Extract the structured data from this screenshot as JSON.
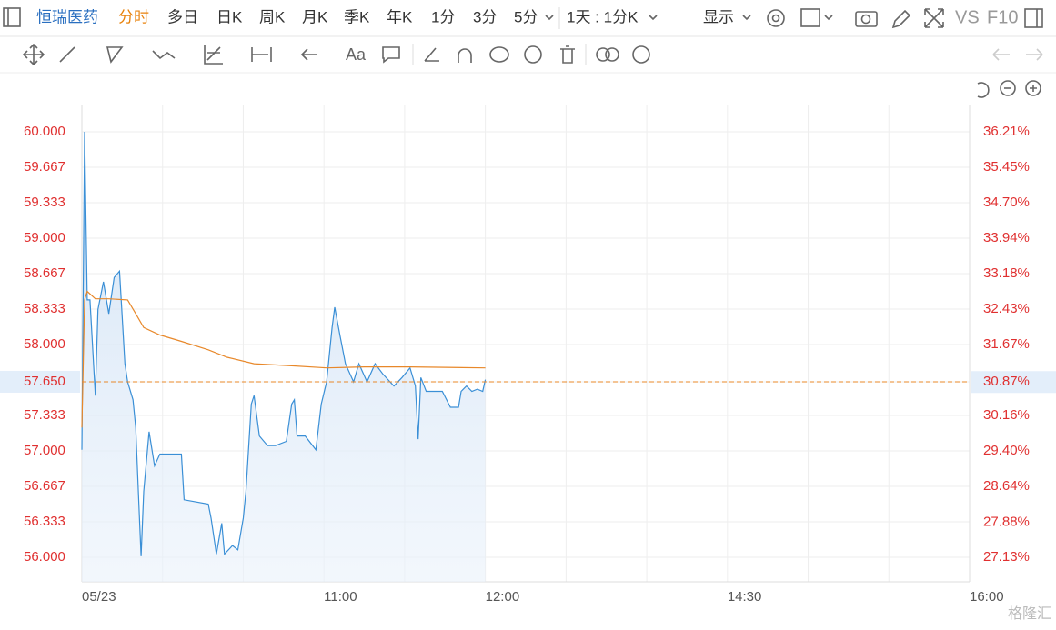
{
  "toolbar": {
    "stock": "恒瑞医药",
    "tabs": [
      "分时",
      "多日",
      "日K",
      "周K",
      "月K",
      "季K",
      "年K",
      "1分",
      "3分",
      "5分"
    ],
    "period": "1天 : 1分K",
    "display": "显示",
    "vs": "VS",
    "f10": "F10"
  },
  "watermark": "格隆汇",
  "chart_data": {
    "type": "line",
    "series": [
      {
        "color": "#3a8fd6",
        "x": [
          0,
          1,
          2,
          3,
          5,
          6,
          8,
          10,
          12,
          14,
          15,
          16,
          17,
          19,
          20,
          21,
          22,
          23,
          25,
          27,
          29,
          31,
          33,
          37,
          38,
          47,
          48,
          50,
          52,
          53,
          56,
          58,
          60,
          61,
          63,
          64,
          66,
          69,
          72,
          76,
          78,
          79,
          80,
          83,
          87,
          89,
          91,
          93,
          94,
          96,
          98,
          101,
          103,
          106,
          109,
          112,
          116,
          119,
          122,
          124,
          125,
          126,
          128,
          134,
          137,
          140,
          141,
          143,
          145,
          147,
          149,
          150
        ],
        "values": [
          57.01,
          60.0,
          58.42,
          58.42,
          57.52,
          58.33,
          58.59,
          58.29,
          58.63,
          58.69,
          58.25,
          57.82,
          57.65,
          57.48,
          57.22,
          56.62,
          56.01,
          56.62,
          57.18,
          56.86,
          56.97,
          56.97,
          56.97,
          56.97,
          56.54,
          56.5,
          56.37,
          56.03,
          56.32,
          56.03,
          56.11,
          56.07,
          56.37,
          56.62,
          57.44,
          57.52,
          57.14,
          57.05,
          57.05,
          57.09,
          57.44,
          57.48,
          57.14,
          57.14,
          57.01,
          57.44,
          57.65,
          58.16,
          58.35,
          58.08,
          57.82,
          57.65,
          57.82,
          57.65,
          57.82,
          57.72,
          57.61,
          57.69,
          57.78,
          57.61,
          57.11,
          57.69,
          57.56,
          57.56,
          57.41,
          57.41,
          57.56,
          57.61,
          57.56,
          57.58,
          57.56,
          57.67
        ]
      },
      {
        "color": "#e8882a",
        "x": [
          0,
          1,
          2,
          5,
          10,
          17,
          20,
          23,
          29,
          37,
          47,
          54,
          64,
          78,
          91,
          105,
          122,
          150
        ],
        "values": [
          57.22,
          58.42,
          58.5,
          58.43,
          58.43,
          58.42,
          58.29,
          58.16,
          58.09,
          58.03,
          57.95,
          57.88,
          57.82,
          57.8,
          57.78,
          57.79,
          57.79,
          57.78
        ]
      }
    ],
    "reference": {
      "value": 57.65,
      "color": "#e8882a"
    },
    "xlim": [
      0,
      330
    ],
    "xticks": [
      {
        "value": 0,
        "label": "05/23"
      },
      {
        "value": 90,
        "label": "11:00"
      },
      {
        "value": 150,
        "label": "12:00"
      },
      {
        "value": 240,
        "label": "14:30"
      },
      {
        "value": 330,
        "label": "16:00"
      }
    ],
    "xgrid": [
      30,
      60,
      90,
      120,
      150,
      180,
      210,
      240,
      270,
      300,
      330
    ],
    "ylim": [
      56.0,
      60.0
    ],
    "yticks": [
      {
        "value": 60.0,
        "label": "60.000"
      },
      {
        "value": 59.667,
        "label": "59.667"
      },
      {
        "value": 59.333,
        "label": "59.333"
      },
      {
        "value": 59.0,
        "label": "59.000"
      },
      {
        "value": 58.667,
        "label": "58.667"
      },
      {
        "value": 58.333,
        "label": "58.333"
      },
      {
        "value": 58.0,
        "label": "58.000"
      },
      {
        "value": 57.65,
        "label": "57.650"
      },
      {
        "value": 57.333,
        "label": "57.333"
      },
      {
        "value": 57.0,
        "label": "57.000"
      },
      {
        "value": 56.667,
        "label": "56.667"
      },
      {
        "value": 56.333,
        "label": "56.333"
      },
      {
        "value": 56.0,
        "label": "56.000"
      }
    ],
    "y2lim": [
      27.13,
      36.21
    ],
    "y2ticks": [
      {
        "value": 36.21,
        "label": "36.21%"
      },
      {
        "value": 35.45,
        "label": "35.45%"
      },
      {
        "value": 34.7,
        "label": "34.70%"
      },
      {
        "value": 33.94,
        "label": "33.94%"
      },
      {
        "value": 33.18,
        "label": "33.18%"
      },
      {
        "value": 32.43,
        "label": "32.43%"
      },
      {
        "value": 31.67,
        "label": "31.67%"
      },
      {
        "value": 30.87,
        "label": "30.87%"
      },
      {
        "value": 30.16,
        "label": "30.16%"
      },
      {
        "value": 29.4,
        "label": "29.40%"
      },
      {
        "value": 28.64,
        "label": "28.64%"
      },
      {
        "value": 27.88,
        "label": "27.88%"
      },
      {
        "value": 27.13,
        "label": "27.13%"
      }
    ],
    "grid": true
  }
}
